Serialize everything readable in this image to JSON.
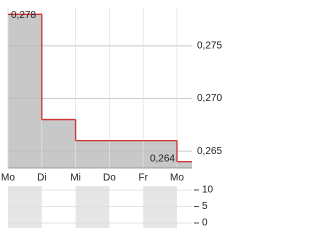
{
  "chart_data": [
    {
      "type": "step",
      "categories": [
        "Mo",
        "Di",
        "Mi",
        "Do",
        "Fr",
        "Mo"
      ],
      "values": [
        0.278,
        0.268,
        0.266,
        0.266,
        0.266,
        0.264
      ],
      "value_labels": [
        "0,278",
        null,
        null,
        null,
        null,
        "0,264"
      ],
      "color": "#cc3333",
      "fill": "#c8c8c8",
      "ylim": [
        0.2634,
        0.2786
      ],
      "yticks": [
        {
          "value": 0.265,
          "label": "0,265"
        },
        {
          "value": 0.27,
          "label": "0,270"
        },
        {
          "value": 0.275,
          "label": "0,275"
        }
      ],
      "grid": true
    },
    {
      "type": "volume",
      "ylim": [
        0,
        11.2
      ],
      "yticks": [
        0,
        5,
        10
      ],
      "shade": "#e6e6e6"
    }
  ]
}
